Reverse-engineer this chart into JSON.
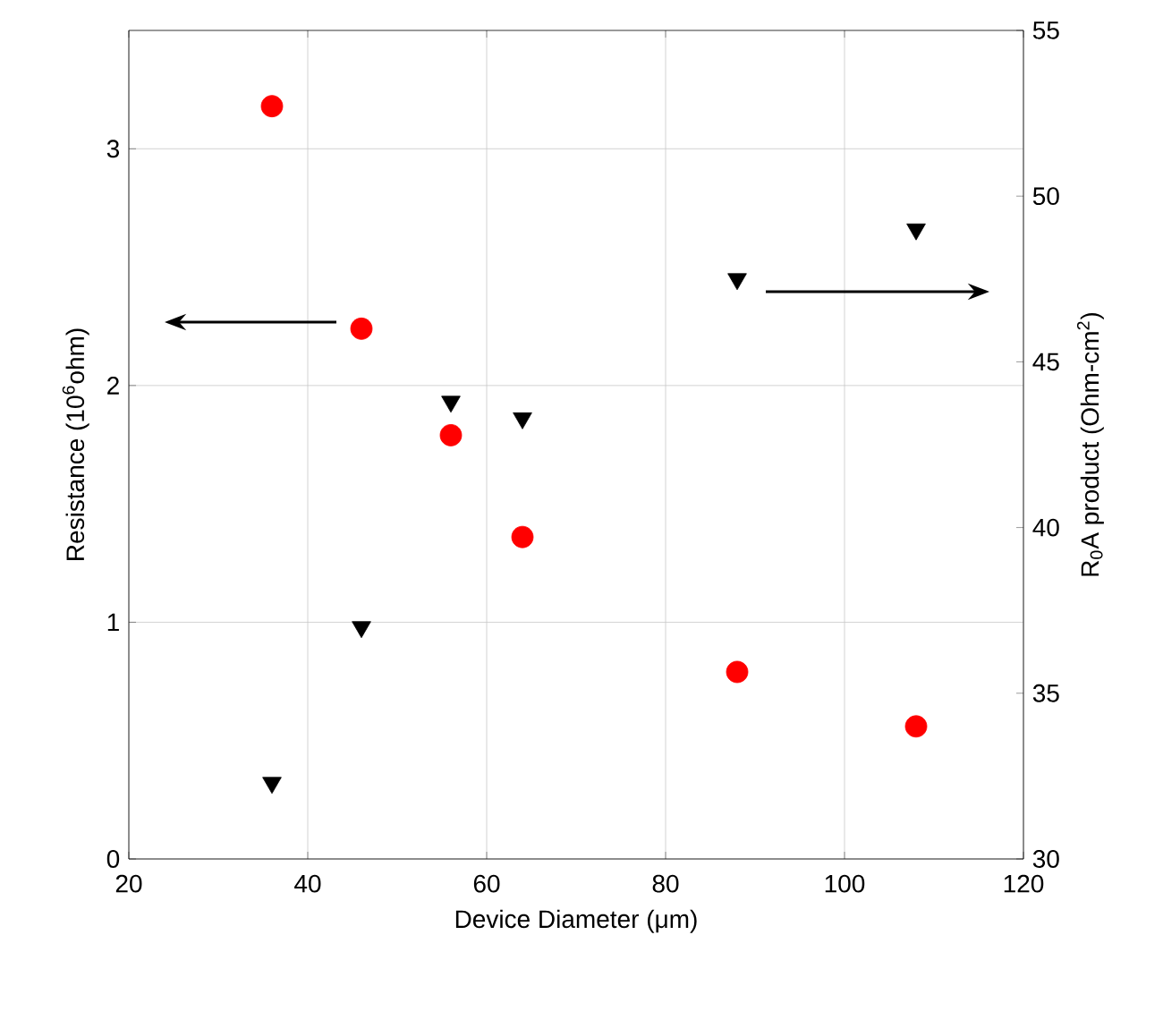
{
  "chart_data": {
    "type": "scatter",
    "xlabel": "Device Diameter (μm)",
    "ylabel": "Resistance (10$^{6}$ohm)",
    "y2label": "R$_{0}$A product (Ohm-cm$^{2}$)",
    "x": [
      36,
      46,
      56,
      64,
      88,
      108
    ],
    "series": [
      {
        "color": "#ff0000",
        "marker": "circle",
        "values": [
          3.18,
          2.24,
          1.79,
          1.36,
          0.79,
          0.56
        ]
      },
      {
        "color": "#000000",
        "marker": "triangle",
        "axis": "y2",
        "values": [
          32.3,
          37.0,
          43.8,
          43.3,
          47.5,
          49.0
        ]
      }
    ],
    "xlim": [
      20,
      120
    ],
    "xticks": [
      20,
      40,
      60,
      80,
      100,
      120
    ],
    "ylim": [
      0,
      3.5
    ],
    "yticks": [
      0,
      1,
      2,
      3
    ],
    "y2lim": [
      30,
      55
    ],
    "y2ticks": [
      30,
      35,
      40,
      45,
      50,
      55
    ],
    "grid": true
  }
}
